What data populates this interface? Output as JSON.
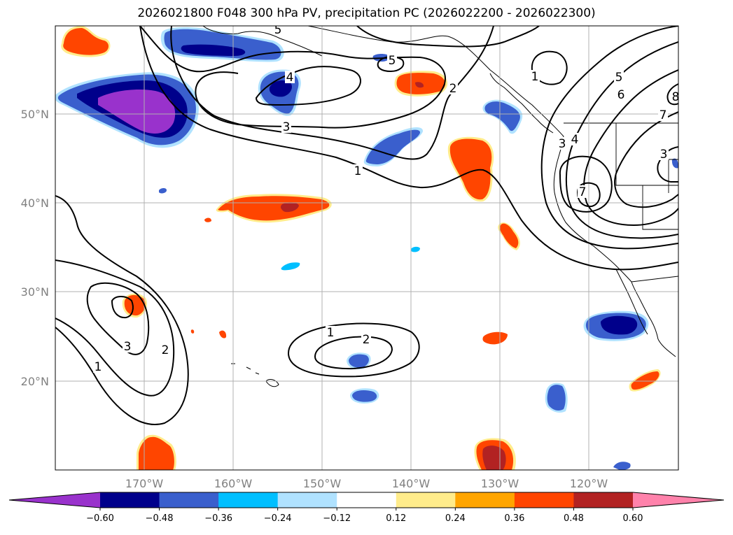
{
  "title": "2026021800 F048 300 hPa PV, precipitation PC (2026022200 - 2026022300)",
  "map": {
    "lat_labels": [
      "50°N",
      "40°N",
      "30°N",
      "20°N"
    ],
    "lon_labels": [
      "170°W",
      "160°W",
      "150°W",
      "140°W",
      "130°W",
      "120°W"
    ],
    "contour_labels": [
      "5",
      "4",
      "5",
      "2",
      "3",
      "1",
      "1",
      "2",
      "3",
      "1",
      "1",
      "2",
      "3",
      "4",
      "5",
      "6",
      "7",
      "3",
      "8",
      "7"
    ]
  },
  "colorbar": {
    "ticks": [
      "−0.60",
      "−0.48",
      "−0.36",
      "−0.24",
      "−0.12",
      "0.12",
      "0.24",
      "0.36",
      "0.48",
      "0.60"
    ],
    "colors": {
      "under": "#9932cc",
      "bins": [
        "#00008b",
        "#3a5fcd",
        "#00bfff",
        "#b0e2ff",
        "#ffffff",
        "#ffec8b",
        "#ffa500",
        "#ff4500",
        "#b22222"
      ],
      "over": "#ff82ab"
    }
  },
  "colors": {
    "very_neg": "#9932cc",
    "neg_dark": "#00008b",
    "neg_mid": "#3a5fcd",
    "neg_light": "#00bfff",
    "neg_pale": "#b0e2ff",
    "pos_pale": "#ffec8b",
    "pos_light": "#ffa500",
    "pos_mid": "#ff4500",
    "pos_dark": "#b22222",
    "very_pos": "#ff82ab",
    "contour": "#000000",
    "grid": "#b0b0b0",
    "tick_label": "#808080"
  }
}
